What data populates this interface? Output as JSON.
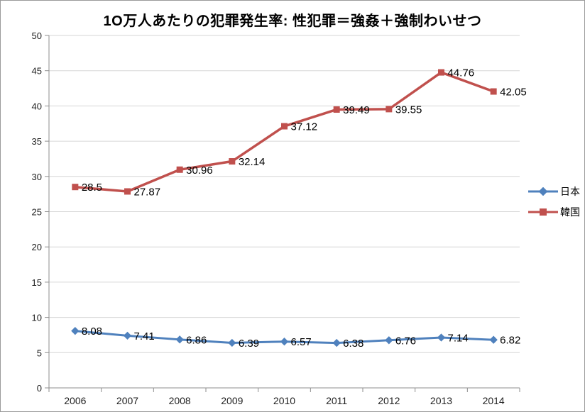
{
  "chart_data": {
    "type": "line",
    "title": "1O万人あたりの犯罪発生率: 性犯罪＝強姦＋強制わいせつ",
    "categories": [
      "2006",
      "2007",
      "2008",
      "2009",
      "2010",
      "2011",
      "2012",
      "2013",
      "2014"
    ],
    "series": [
      {
        "name": "日本",
        "color": "#4f81bd",
        "marker": "diamond",
        "line_width": 3,
        "values": [
          8.08,
          7.41,
          6.86,
          6.39,
          6.57,
          6.38,
          6.76,
          7.14,
          6.82
        ]
      },
      {
        "name": "韓国",
        "color": "#c0504d",
        "marker": "square",
        "line_width": 3.5,
        "values": [
          28.5,
          27.87,
          30.96,
          32.14,
          37.12,
          39.49,
          39.55,
          44.76,
          42.05
        ]
      }
    ],
    "xlabel": "",
    "ylabel": "",
    "ylim": [
      0,
      50
    ],
    "ytick_step": 5,
    "grid": true,
    "data_labels": true,
    "legend_position": "right",
    "colors": {
      "grid_line": "#d6d6d6",
      "axis_line": "#8e8e8e",
      "background": "#ffffff"
    }
  }
}
